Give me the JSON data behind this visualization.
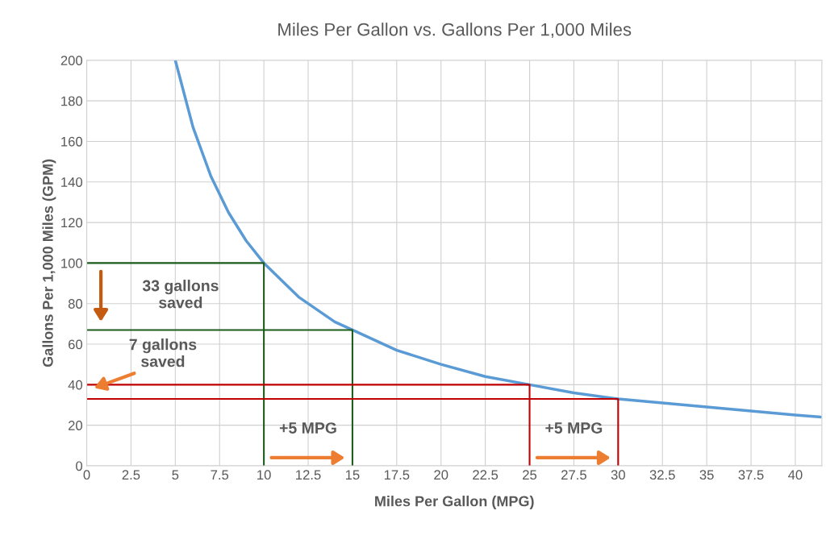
{
  "chart_data": {
    "type": "line",
    "title": "Miles Per Gallon vs. Gallons Per 1,000 Miles",
    "xlabel": "Miles Per Gallon (MPG)",
    "ylabel": "Gallons Per 1,000 Miles (GPM)",
    "series": [
      {
        "color": "#5b9bd5",
        "x": [
          5,
          6,
          7,
          8,
          9,
          10,
          12,
          14,
          15,
          17.5,
          20,
          22.5,
          25,
          27.5,
          30,
          32.5,
          35,
          37.5,
          40,
          41.5
        ],
        "values": [
          200,
          167,
          143,
          125,
          111,
          100,
          83,
          71,
          67,
          57,
          50,
          44,
          40,
          36,
          33,
          31,
          29,
          27,
          25,
          24
        ]
      },
      {
        "color": "#1e5c1e",
        "x": [
          0,
          10,
          10
        ],
        "values": [
          100,
          100,
          0
        ]
      },
      {
        "color": "#1e5c1e",
        "x": [
          0,
          15,
          15
        ],
        "values": [
          67,
          67,
          0
        ]
      },
      {
        "color": "#c00000",
        "x": [
          0,
          25,
          25
        ],
        "values": [
          40,
          40,
          0
        ]
      },
      {
        "color": "#c00000",
        "x": [
          0,
          30,
          30
        ],
        "values": [
          33,
          33,
          0
        ]
      }
    ],
    "annotations": [
      "33 gallons\nsaved",
      {
        "text": "7 gallons\nsaved",
        "x": 0,
        "y": 40
      },
      "+5 MPG",
      "+5 MPG"
    ],
    "xlim": [
      0,
      41.5
    ],
    "xticks": [
      0,
      2.5,
      5,
      7.5,
      10,
      12.5,
      15,
      17.5,
      20,
      22.5,
      25,
      27.5,
      30,
      32.5,
      35,
      37.5,
      40
    ],
    "ylim": [
      0,
      200
    ],
    "yticks": [
      0,
      20,
      40,
      60,
      80,
      100,
      120,
      140,
      160,
      180,
      200
    ],
    "grid": true,
    "legend": false
  }
}
